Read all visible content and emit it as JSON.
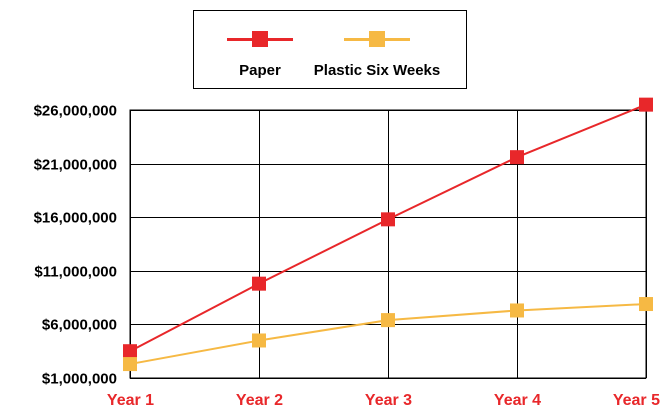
{
  "chart_data": {
    "type": "line",
    "title": "",
    "xlabel": "",
    "ylabel": "",
    "categories": [
      "Year 1",
      "Year 2",
      "Year 3",
      "Year 4",
      "Year 5"
    ],
    "series": [
      {
        "name": "Paper",
        "color": "#e8272a",
        "marker": "square",
        "values": [
          3500000,
          9800000,
          15800000,
          21600000,
          26500000
        ]
      },
      {
        "name": "Plastic Six Weeks",
        "color": "#f6b944",
        "marker": "square",
        "values": [
          2300000,
          4500000,
          6400000,
          7300000,
          7900000
        ]
      }
    ],
    "y_ticks": [
      1000000,
      6000000,
      11000000,
      16000000,
      21000000,
      26000000
    ],
    "y_tick_labels": [
      "$1,000,000",
      "$6,000,000",
      "$11,000,000",
      "$16,000,000",
      "$21,000,000",
      "$26,000,000"
    ],
    "ylim": [
      1000000,
      26000000
    ],
    "grid": true,
    "legend_position": "top-center",
    "x_tick_label_color": "#e8272a"
  }
}
